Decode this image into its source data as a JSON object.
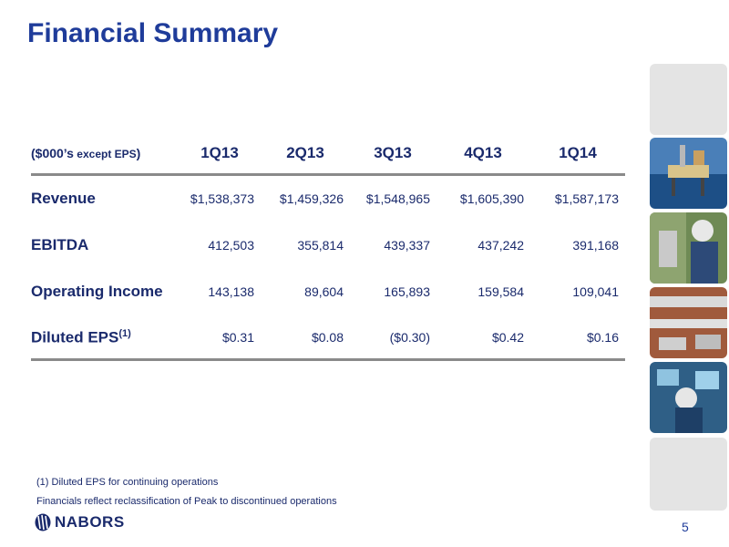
{
  "title": "Financial Summary",
  "table": {
    "header_label_main": "($000’s",
    "header_label_small": " except EPS",
    "header_label_close": ")",
    "columns": [
      "1Q13",
      "2Q13",
      "3Q13",
      "4Q13",
      "1Q14"
    ],
    "rows": [
      {
        "label": "Revenue",
        "sup": "",
        "values": [
          "$1,538,373",
          "$1,459,326",
          "$1,548,965",
          "$1,605,390",
          "$1,587,173"
        ]
      },
      {
        "label": "EBITDA",
        "sup": "",
        "values": [
          "412,503",
          "355,814",
          "439,337",
          "437,242",
          "391,168"
        ]
      },
      {
        "label": "Operating Income",
        "sup": "",
        "values": [
          "143,138",
          "89,604",
          "165,893",
          "159,584",
          "109,041"
        ]
      },
      {
        "label": "Diluted EPS",
        "sup": "(1)",
        "values": [
          "$0.31",
          "$0.08",
          "($0.30)",
          "$0.42",
          "$0.16"
        ]
      }
    ]
  },
  "footnotes": {
    "note1": "(1)  Diluted EPS for continuing operations",
    "note2": "Financials reflect reclassification of Peak to discontinued operations"
  },
  "logo_text": "NABORS",
  "page_number": "5",
  "colors": {
    "title": "#1f3c9a",
    "text": "#1a2a6c",
    "rule": "#8a8a8a",
    "tile": "#e4e4e4"
  }
}
